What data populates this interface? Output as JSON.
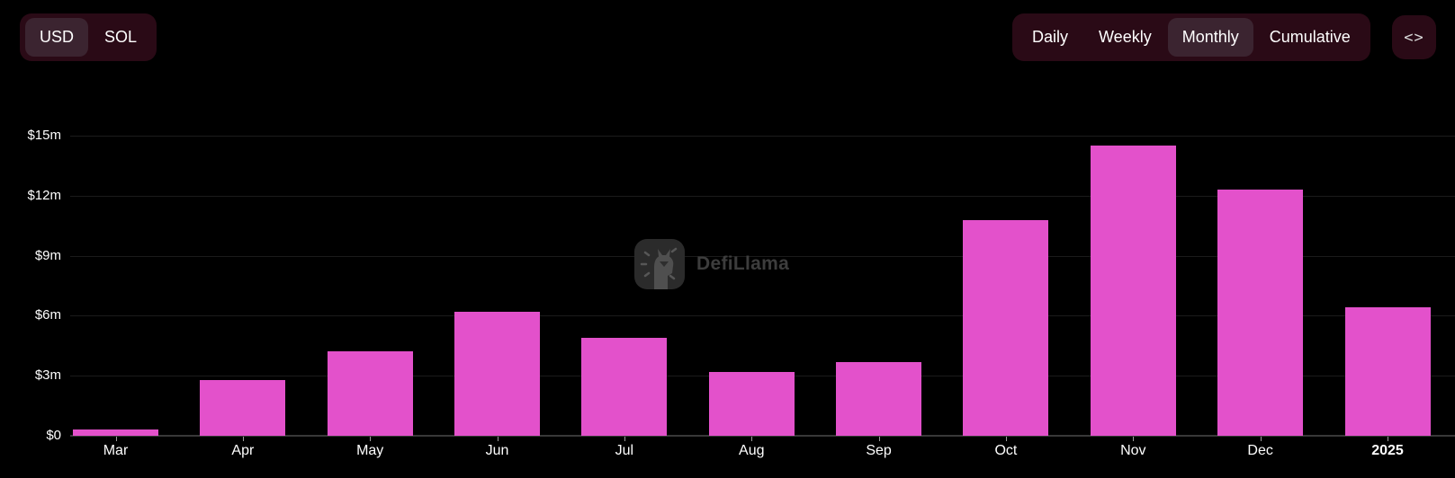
{
  "controls": {
    "currency": {
      "options": [
        "USD",
        "SOL"
      ],
      "selected": "USD"
    },
    "interval": {
      "options": [
        "Daily",
        "Weekly",
        "Monthly",
        "Cumulative"
      ],
      "selected": "Monthly"
    },
    "embed_icon": "<>"
  },
  "watermark": {
    "label": "DefiLlama"
  },
  "colors": {
    "background": "#000000",
    "bar": "#e351cb",
    "control_bg": "#2a0a16",
    "control_selected_bg": "#3b2430",
    "grid": "#1b1b1b",
    "axis": "#383838",
    "text": "#ffffff",
    "watermark_text": "#3d3d3d"
  },
  "chart_data": {
    "type": "bar",
    "title": "",
    "xlabel": "",
    "ylabel": "",
    "categories": [
      "Mar",
      "Apr",
      "May",
      "Jun",
      "Jul",
      "Aug",
      "Sep",
      "Oct",
      "Nov",
      "Dec",
      "2025"
    ],
    "values": [
      0.3,
      2.8,
      4.2,
      6.2,
      4.9,
      3.2,
      3.7,
      10.8,
      14.5,
      12.3,
      6.4
    ],
    "values_unit": "$m",
    "yticks": [
      0,
      3,
      6,
      9,
      12,
      15
    ],
    "ytick_labels": [
      "$0",
      "$3m",
      "$6m",
      "$9m",
      "$12m",
      "$15m"
    ],
    "ylim": [
      0,
      15
    ],
    "grid": true,
    "legend": false,
    "bold_categories": [
      "2025"
    ]
  }
}
